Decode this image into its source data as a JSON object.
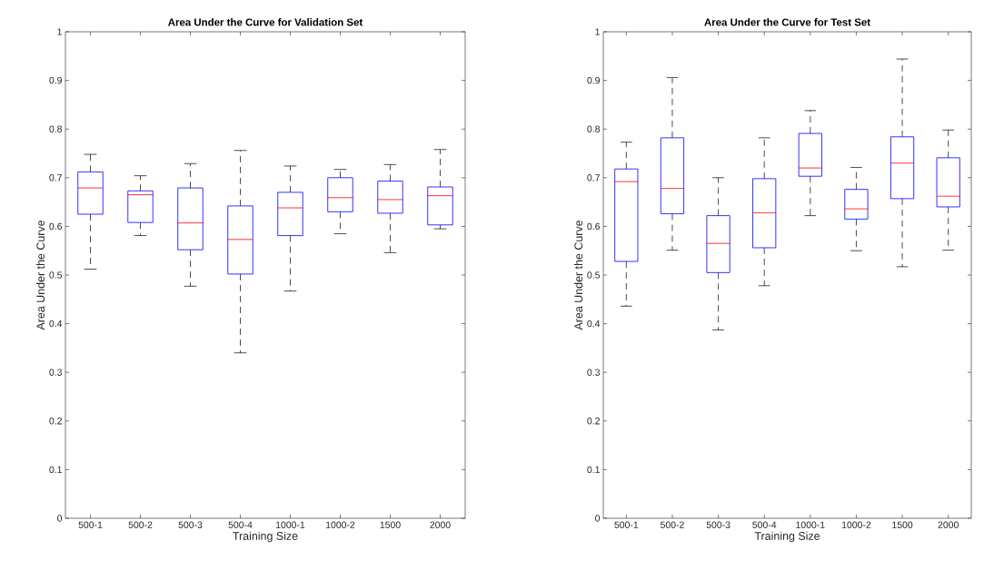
{
  "chart_data": [
    {
      "type": "box",
      "title": "Area Under the Curve for Validation Set",
      "xlabel": "Training Size",
      "ylabel": "Area Under the Curve",
      "categories": [
        "500-1",
        "500-2",
        "500-3",
        "500-4",
        "1000-1",
        "1000-2",
        "1500",
        "2000"
      ],
      "ylim": [
        0,
        1
      ],
      "yticks": [
        0,
        0.1,
        0.2,
        0.3,
        0.4,
        0.5,
        0.6,
        0.7,
        0.8,
        0.9,
        1
      ],
      "series": [
        {
          "color": "#0000ff",
          "boxes": [
            {
              "low": 0.512,
              "q1": 0.625,
              "median": 0.679,
              "q3": 0.712,
              "high": 0.748
            },
            {
              "low": 0.581,
              "q1": 0.608,
              "median": 0.665,
              "q3": 0.673,
              "high": 0.704
            },
            {
              "low": 0.477,
              "q1": 0.552,
              "median": 0.607,
              "q3": 0.679,
              "high": 0.729
            },
            {
              "low": 0.34,
              "q1": 0.502,
              "median": 0.573,
              "q3": 0.642,
              "high": 0.756
            },
            {
              "low": 0.467,
              "q1": 0.581,
              "median": 0.638,
              "q3": 0.67,
              "high": 0.724
            },
            {
              "low": 0.585,
              "q1": 0.63,
              "median": 0.659,
              "q3": 0.7,
              "high": 0.717
            },
            {
              "low": 0.546,
              "q1": 0.627,
              "median": 0.655,
              "q3": 0.693,
              "high": 0.727
            },
            {
              "low": 0.595,
              "q1": 0.603,
              "median": 0.663,
              "q3": 0.681,
              "high": 0.758
            }
          ]
        }
      ]
    },
    {
      "type": "box",
      "title": "Area Under the Curve for Test Set",
      "xlabel": "Training Size",
      "ylabel": "Area Under the Curve",
      "categories": [
        "500-1",
        "500-2",
        "500-3",
        "500-4",
        "1000-1",
        "1000-2",
        "1500",
        "2000"
      ],
      "ylim": [
        0,
        1
      ],
      "yticks": [
        0,
        0.1,
        0.2,
        0.3,
        0.4,
        0.5,
        0.6,
        0.7,
        0.8,
        0.9,
        1
      ],
      "series": [
        {
          "color": "#0000ff",
          "boxes": [
            {
              "low": 0.436,
              "q1": 0.528,
              "median": 0.692,
              "q3": 0.718,
              "high": 0.773
            },
            {
              "low": 0.551,
              "q1": 0.626,
              "median": 0.678,
              "q3": 0.782,
              "high": 0.906
            },
            {
              "low": 0.387,
              "q1": 0.505,
              "median": 0.565,
              "q3": 0.622,
              "high": 0.7
            },
            {
              "low": 0.478,
              "q1": 0.556,
              "median": 0.628,
              "q3": 0.698,
              "high": 0.782
            },
            {
              "low": 0.622,
              "q1": 0.703,
              "median": 0.72,
              "q3": 0.791,
              "high": 0.838
            },
            {
              "low": 0.55,
              "q1": 0.615,
              "median": 0.636,
              "q3": 0.676,
              "high": 0.721
            },
            {
              "low": 0.517,
              "q1": 0.657,
              "median": 0.73,
              "q3": 0.784,
              "high": 0.944
            },
            {
              "low": 0.551,
              "q1": 0.64,
              "median": 0.662,
              "q3": 0.741,
              "high": 0.798
            }
          ]
        }
      ]
    }
  ]
}
